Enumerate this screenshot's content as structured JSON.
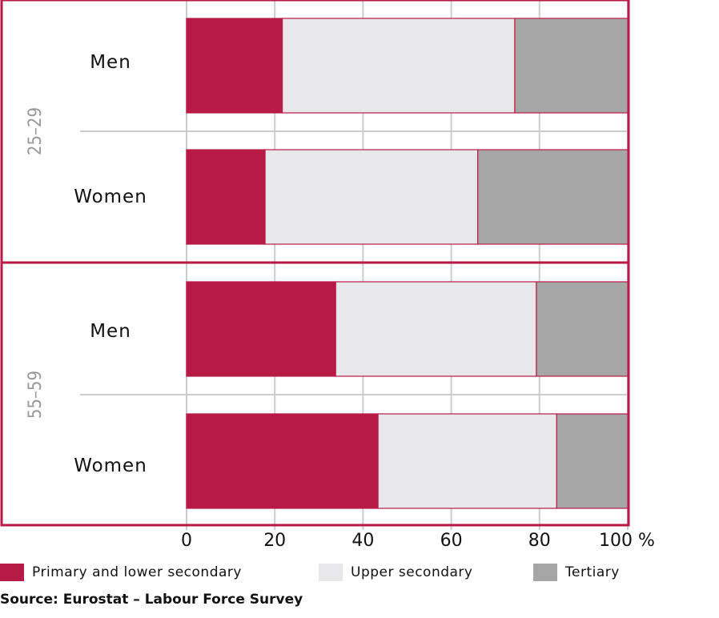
{
  "chart_data": {
    "type": "bar",
    "orientation": "horizontal",
    "stacked": true,
    "groups": [
      {
        "label": "25–29",
        "rows": [
          {
            "label": "Men",
            "values": [
              21.7,
              52.7,
              25.6
            ]
          },
          {
            "label": "Women",
            "values": [
              17.8,
              48.2,
              34.0
            ]
          }
        ]
      },
      {
        "label": "55–59",
        "rows": [
          {
            "label": "Men",
            "values": [
              33.8,
              45.5,
              20.7
            ]
          },
          {
            "label": "Women",
            "values": [
              43.4,
              40.5,
              16.1
            ]
          }
        ]
      }
    ],
    "series": [
      {
        "name": "Primary and lower secondary",
        "color": "#b81a46"
      },
      {
        "name": "Upper secondary",
        "color": "#e8e8ea"
      },
      {
        "name": "Tertiary",
        "color": "#a6a6a6"
      }
    ],
    "x_ticks": [
      "0",
      "20",
      "40",
      "60",
      "80",
      "100 %"
    ],
    "xlim": [
      0,
      100
    ],
    "grid": true,
    "legend_position": "bottom",
    "frame_color": "#b81a46",
    "grid_color": "#cccccc"
  },
  "legend": {
    "items": [
      {
        "name": "Primary and lower secondary",
        "color": "#b81a46"
      },
      {
        "name": "Upper secondary",
        "color": "#e8e8ea"
      },
      {
        "name": "Tertiary",
        "color": "#a6a6a6"
      }
    ]
  },
  "source": "Source: Eurostat – Labour Force Survey"
}
